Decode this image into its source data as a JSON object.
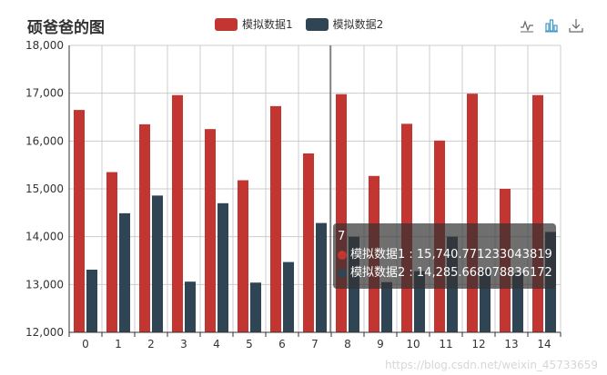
{
  "chart_title": "硕爸爸的图",
  "legend": [
    {
      "name": "模拟数据1",
      "color": "#c23531"
    },
    {
      "name": "模拟数据2",
      "color": "#2f4554"
    }
  ],
  "toolbox": [
    {
      "icon": "line-chart-icon"
    },
    {
      "icon": "bar-chart-icon"
    },
    {
      "icon": "download-icon"
    }
  ],
  "tooltip": {
    "category": "7",
    "series1_label": "模拟数据1 : 15,740.771233043819",
    "series2_label": "模拟数据2 : 14,285.668078836172"
  },
  "watermark": "https://blog.csdn.net/weixin_45733659",
  "colors": {
    "series1": "#c23531",
    "series2": "#2f4554",
    "axis": "#333333",
    "grid": "#cccccc"
  },
  "chart_data": {
    "type": "bar",
    "title": "硕爸爸的图",
    "categories": [
      "0",
      "1",
      "2",
      "3",
      "4",
      "5",
      "6",
      "7",
      "8",
      "9",
      "10",
      "11",
      "12",
      "13",
      "14"
    ],
    "ylim": [
      12000,
      18000
    ],
    "yticks": [
      "12,000",
      "13,000",
      "14,000",
      "15,000",
      "16,000",
      "17,000",
      "18,000"
    ],
    "ytick_values": [
      12000,
      13000,
      14000,
      15000,
      16000,
      17000,
      18000
    ],
    "grid": true,
    "legend_position": "top-center",
    "highlighted_category": "7",
    "series": [
      {
        "name": "模拟数据1",
        "color": "#c23531",
        "values": [
          16650,
          15350,
          16350,
          16960,
          16250,
          15180,
          16730,
          15740.771233043819,
          16980,
          15270,
          16360,
          16010,
          16990,
          15000,
          16960
        ]
      },
      {
        "name": "模拟数据2",
        "color": "#2f4554",
        "values": [
          13310,
          14490,
          14860,
          13060,
          14700,
          13040,
          13470,
          14285.668078836172,
          14000,
          13050,
          13280,
          14000,
          13320,
          13240,
          14100
        ]
      }
    ]
  }
}
